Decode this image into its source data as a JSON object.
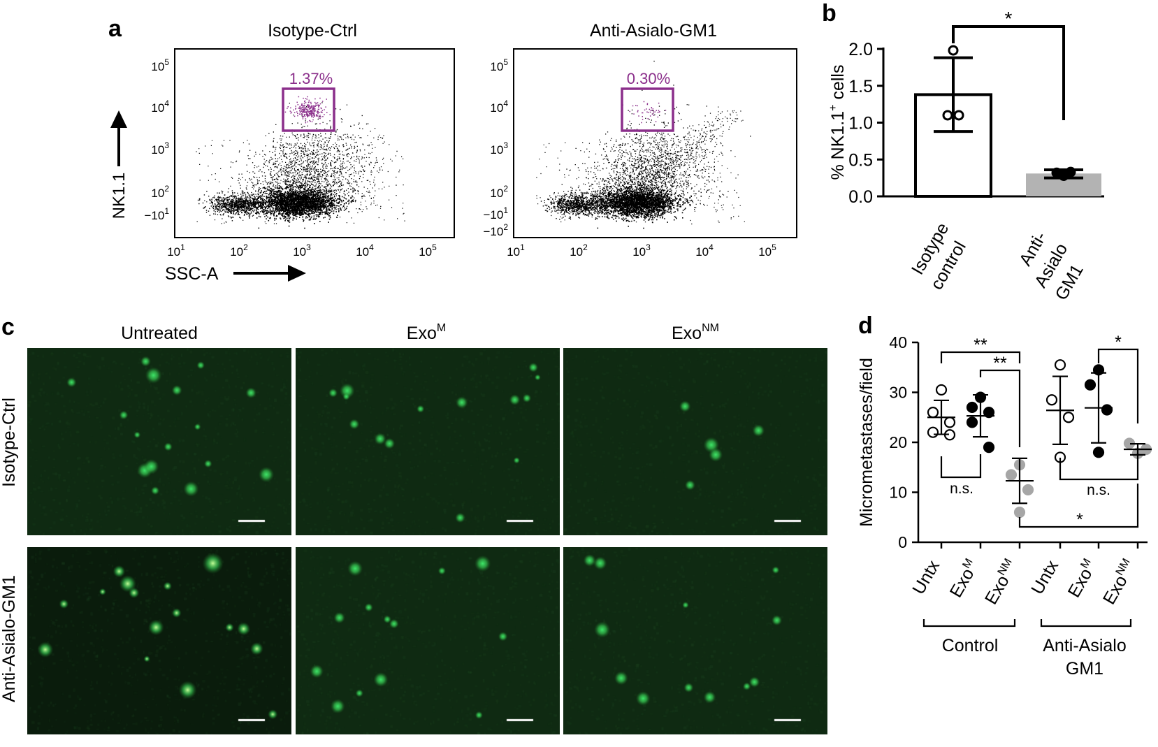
{
  "panel_labels": {
    "a": "a",
    "b": "b",
    "c": "c",
    "d": "d"
  },
  "panel_a": {
    "titles": [
      "Isotype-Ctrl",
      "Anti-Asialo-GM1"
    ],
    "gate_pcts": [
      "1.37%",
      "0.30%"
    ],
    "y_axis_label": "NK1.1",
    "x_axis_label": "SSC-A",
    "x_ticks": [
      {
        "base": "10",
        "exp": "1"
      },
      {
        "base": "10",
        "exp": "2"
      },
      {
        "base": "10",
        "exp": "3"
      },
      {
        "base": "10",
        "exp": "4"
      },
      {
        "base": "10",
        "exp": "5"
      }
    ],
    "y_ticks_left": [
      {
        "base": "10",
        "exp": "5"
      },
      {
        "base": "10",
        "exp": "4"
      },
      {
        "base": "10",
        "exp": "3"
      },
      {
        "base": "10",
        "exp": "2"
      },
      {
        "base": "−10",
        "exp": "1"
      }
    ],
    "y_ticks_right": [
      {
        "base": "10",
        "exp": "5"
      },
      {
        "base": "10",
        "exp": "4"
      },
      {
        "base": "10",
        "exp": "3"
      },
      {
        "base": "10",
        "exp": "2"
      },
      {
        "base": "−10",
        "exp": "1"
      },
      {
        "base": "−10",
        "exp": "2"
      }
    ],
    "gate_color": "#8b2f8b"
  },
  "chart_data": [
    {
      "type": "bar",
      "panel": "b",
      "categories": [
        "Isotype control",
        "Anti-Asialo GM1"
      ],
      "category_lines": [
        [
          "Isotype",
          "control"
        ],
        [
          "Anti-",
          "Asialo",
          "GM1"
        ]
      ],
      "values": [
        1.38,
        0.31
      ],
      "error_low": [
        0.88,
        0.25
      ],
      "error_high": [
        1.88,
        0.36
      ],
      "points": [
        [
          1.98,
          1.1,
          1.1
        ],
        [
          0.32,
          0.28,
          0.33
        ]
      ],
      "ylabel": "% NK1.1",
      "ylabel_sup": "+",
      "ylabel_tail": " cells",
      "ylim": [
        0,
        2.0
      ],
      "yticks": [
        "0.0",
        "0.5",
        "1.0",
        "1.5",
        "2.0"
      ],
      "significance": "*",
      "colors": [
        "#ffffff",
        "#b3b3b3"
      ]
    },
    {
      "type": "scatter",
      "panel": "d",
      "ylabel": "Micrometastases/field",
      "ylim": [
        0,
        40
      ],
      "yticks": [
        "0",
        "10",
        "20",
        "30",
        "40"
      ],
      "groups": [
        {
          "label": "Untx",
          "sup": "",
          "fill": "#ffffff",
          "mean": 25,
          "sd_low": 21.6,
          "sd_high": 28.4,
          "points": [
            30.5,
            26,
            24,
            22,
            21.5
          ]
        },
        {
          "label": "Exo",
          "sup": "M",
          "fill": "#000000",
          "mean": 25.3,
          "sd_low": 21.1,
          "sd_high": 29.5,
          "points": [
            29,
            27,
            26,
            24,
            19
          ]
        },
        {
          "label": "Exo",
          "sup": "NM",
          "fill": "#a6a6a6",
          "mean": 12.3,
          "sd_low": 7.8,
          "sd_high": 16.8,
          "points": [
            15.5,
            13.5,
            10.5,
            6
          ]
        },
        {
          "label": "Untx",
          "sup": "",
          "fill": "#ffffff",
          "mean": 26.4,
          "sd_low": 19.6,
          "sd_high": 33.2,
          "points": [
            35.5,
            28.5,
            25,
            17
          ]
        },
        {
          "label": "Exo",
          "sup": "M",
          "fill": "#000000",
          "mean": 26.9,
          "sd_low": 19.9,
          "sd_high": 33.9,
          "points": [
            34.5,
            31.5,
            26.5,
            18
          ]
        },
        {
          "label": "Exo",
          "sup": "NM",
          "fill": "#a6a6a6",
          "mean": 18.6,
          "sd_low": 17.5,
          "sd_high": 19.7,
          "points": [
            19.8,
            18.6,
            17.8
          ]
        }
      ],
      "group_labels": [
        "Control",
        "Anti-Asialo",
        "GM1"
      ],
      "annotations": [
        "**",
        "**",
        "*",
        "n.s.",
        "n.s.",
        "*"
      ]
    }
  ],
  "panel_c": {
    "col_titles": [
      {
        "main": "Untreated",
        "sup": ""
      },
      {
        "main": "Exo",
        "sup": "M"
      },
      {
        "main": "Exo",
        "sup": "NM"
      }
    ],
    "row_labels": [
      "Isotype-Ctrl",
      "Anti-Asialo-GM1"
    ],
    "field_color": "#0f2a12",
    "spot_color": "#3fe86a"
  }
}
